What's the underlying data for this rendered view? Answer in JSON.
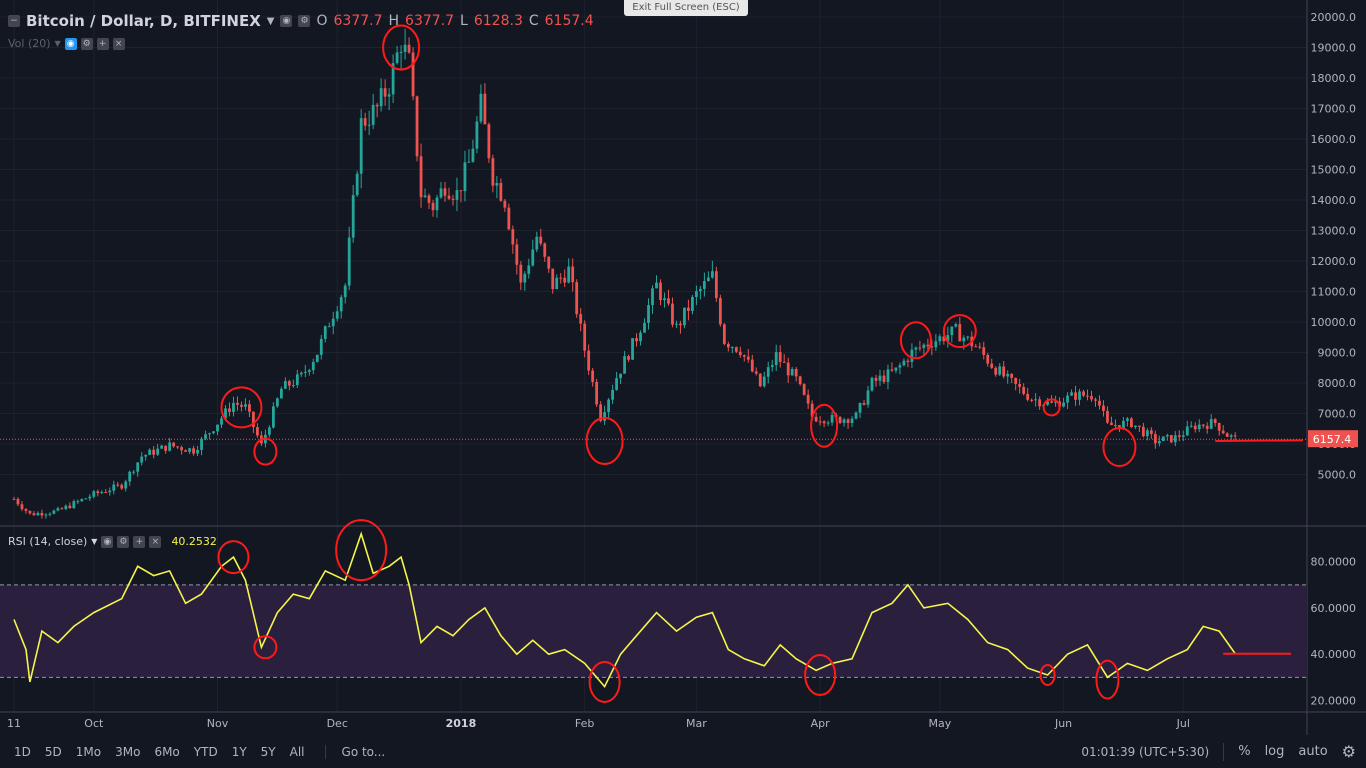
{
  "header": {
    "symbol": "Bitcoin / Dollar, D, BITFINEX",
    "ohlc": [
      {
        "label": "O",
        "value": "6377.7"
      },
      {
        "label": "H",
        "value": "6377.7"
      },
      {
        "label": "L",
        "value": "6128.3"
      },
      {
        "label": "C",
        "value": "6157.4"
      }
    ]
  },
  "volume_legend": "Vol (20)",
  "rsi_legend": {
    "label": "RSI (14, close)",
    "value": "40.2532"
  },
  "exit_fullscreen": "Exit Full Screen (ESC)",
  "last_price_badge": "6157.4",
  "colors": {
    "bg": "#131722",
    "up": "#26a69a",
    "down": "#ef5350",
    "rsi": "#f5f54a",
    "band": "#2a1f3d",
    "annotation": "#ff1a1a"
  },
  "toolbar": {
    "timeframes": [
      "1D",
      "5D",
      "1Mo",
      "3Mo",
      "6Mo",
      "YTD",
      "1Y",
      "5Y",
      "All"
    ],
    "goto": "Go to...",
    "clock": "01:01:39 (UTC+5:30)",
    "percent": "%",
    "log": "log",
    "auto": "auto",
    "settings_icon": "gear-icon"
  },
  "chart_data": [
    {
      "type": "candlestick",
      "title": "Bitcoin / Dollar, D, BITFINEX",
      "yticks": [
        "5000.0",
        "6000.0",
        "7000.0",
        "8000.0",
        "9000.0",
        "10000.0",
        "11000.0",
        "12000.0",
        "13000.0",
        "14000.0",
        "15000.0",
        "16000.0",
        "17000.0",
        "18000.0",
        "19000.0",
        "20000.0"
      ],
      "ylim": [
        4000,
        20000
      ],
      "xticks": [
        {
          "label": "11",
          "date": "2017-09-11"
        },
        {
          "label": "Oct",
          "date": "2017-10-01"
        },
        {
          "label": "Nov",
          "date": "2017-11-01"
        },
        {
          "label": "Dec",
          "date": "2017-12-01"
        },
        {
          "label": "2018",
          "date": "2018-01-01"
        },
        {
          "label": "Feb",
          "date": "2018-02-01"
        },
        {
          "label": "Mar",
          "date": "2018-03-01"
        },
        {
          "label": "Apr",
          "date": "2018-04-01"
        },
        {
          "label": "May",
          "date": "2018-05-01"
        },
        {
          "label": "Jun",
          "date": "2018-06-01"
        },
        {
          "label": "Jul",
          "date": "2018-07-01"
        }
      ],
      "x_range": [
        "2017-09-11",
        "2018-08-01"
      ],
      "close_path": [
        {
          "date": "2017-09-11",
          "close": 4200
        },
        {
          "date": "2017-09-15",
          "close": 3700
        },
        {
          "date": "2017-09-22",
          "close": 3800
        },
        {
          "date": "2017-10-01",
          "close": 4350
        },
        {
          "date": "2017-10-08",
          "close": 4650
        },
        {
          "date": "2017-10-13",
          "close": 5600
        },
        {
          "date": "2017-10-20",
          "close": 5950
        },
        {
          "date": "2017-10-26",
          "close": 5800
        },
        {
          "date": "2017-11-01",
          "close": 6700
        },
        {
          "date": "2017-11-05",
          "close": 7350
        },
        {
          "date": "2017-11-08",
          "close": 7200
        },
        {
          "date": "2017-11-12",
          "close": 5950
        },
        {
          "date": "2017-11-17",
          "close": 7800
        },
        {
          "date": "2017-11-22",
          "close": 8200
        },
        {
          "date": "2017-11-26",
          "close": 9000
        },
        {
          "date": "2017-11-29",
          "close": 10000
        },
        {
          "date": "2017-12-03",
          "close": 11200
        },
        {
          "date": "2017-12-07",
          "close": 16500
        },
        {
          "date": "2017-12-11",
          "close": 17000
        },
        {
          "date": "2017-12-14",
          "close": 17800
        },
        {
          "date": "2017-12-17",
          "close": 19200
        },
        {
          "date": "2017-12-19",
          "close": 18500
        },
        {
          "date": "2017-12-22",
          "close": 14200
        },
        {
          "date": "2017-12-25",
          "close": 13800
        },
        {
          "date": "2017-12-28",
          "close": 14500
        },
        {
          "date": "2017-12-31",
          "close": 14200
        },
        {
          "date": "2018-01-03",
          "close": 15200
        },
        {
          "date": "2018-01-06",
          "close": 17100
        },
        {
          "date": "2018-01-09",
          "close": 14800
        },
        {
          "date": "2018-01-12",
          "close": 14000
        },
        {
          "date": "2018-01-16",
          "close": 11200
        },
        {
          "date": "2018-01-20",
          "close": 12800
        },
        {
          "date": "2018-01-24",
          "close": 11200
        },
        {
          "date": "2018-01-28",
          "close": 11700
        },
        {
          "date": "2018-02-01",
          "close": 9100
        },
        {
          "date": "2018-02-05",
          "close": 6900
        },
        {
          "date": "2018-02-09",
          "close": 8200
        },
        {
          "date": "2018-02-14",
          "close": 9500
        },
        {
          "date": "2018-02-19",
          "close": 11200
        },
        {
          "date": "2018-02-24",
          "close": 9800
        },
        {
          "date": "2018-03-01",
          "close": 10900
        },
        {
          "date": "2018-03-05",
          "close": 11500
        },
        {
          "date": "2018-03-08",
          "close": 9400
        },
        {
          "date": "2018-03-12",
          "close": 9100
        },
        {
          "date": "2018-03-17",
          "close": 7900
        },
        {
          "date": "2018-03-21",
          "close": 8900
        },
        {
          "date": "2018-03-26",
          "close": 8100
        },
        {
          "date": "2018-03-30",
          "close": 6900
        },
        {
          "date": "2018-04-05",
          "close": 6800
        },
        {
          "date": "2018-04-10",
          "close": 6900
        },
        {
          "date": "2018-04-14",
          "close": 8000
        },
        {
          "date": "2018-04-20",
          "close": 8400
        },
        {
          "date": "2018-04-24",
          "close": 9000
        },
        {
          "date": "2018-04-28",
          "close": 9300
        },
        {
          "date": "2018-05-05",
          "close": 9700
        },
        {
          "date": "2018-05-10",
          "close": 9200
        },
        {
          "date": "2018-05-14",
          "close": 8600
        },
        {
          "date": "2018-05-18",
          "close": 8100
        },
        {
          "date": "2018-05-24",
          "close": 7500
        },
        {
          "date": "2018-05-29",
          "close": 7300
        },
        {
          "date": "2018-06-04",
          "close": 7600
        },
        {
          "date": "2018-06-09",
          "close": 7600
        },
        {
          "date": "2018-06-12",
          "close": 6600
        },
        {
          "date": "2018-06-18",
          "close": 6700
        },
        {
          "date": "2018-06-24",
          "close": 6100
        },
        {
          "date": "2018-06-29",
          "close": 6200
        },
        {
          "date": "2018-07-04",
          "close": 6600
        },
        {
          "date": "2018-07-09",
          "close": 6700
        },
        {
          "date": "2018-07-12",
          "close": 6300
        },
        {
          "date": "2018-07-14",
          "close": 6157.4
        }
      ],
      "last_price": 6157.4
    },
    {
      "type": "line",
      "title": "RSI (14, close)",
      "yticks": [
        "20.0000",
        "40.0000",
        "60.0000",
        "80.0000"
      ],
      "ylim": [
        15,
        95
      ],
      "bands": [
        30,
        70
      ],
      "series": [
        {
          "values": [
            {
              "date": "2017-09-11",
              "rsi": 55
            },
            {
              "date": "2017-09-14",
              "rsi": 42
            },
            {
              "date": "2017-09-15",
              "rsi": 28
            },
            {
              "date": "2017-09-18",
              "rsi": 50
            },
            {
              "date": "2017-09-22",
              "rsi": 45
            },
            {
              "date": "2017-09-26",
              "rsi": 52
            },
            {
              "date": "2017-10-01",
              "rsi": 58
            },
            {
              "date": "2017-10-08",
              "rsi": 64
            },
            {
              "date": "2017-10-12",
              "rsi": 78
            },
            {
              "date": "2017-10-16",
              "rsi": 74
            },
            {
              "date": "2017-10-20",
              "rsi": 76
            },
            {
              "date": "2017-10-24",
              "rsi": 62
            },
            {
              "date": "2017-10-28",
              "rsi": 66
            },
            {
              "date": "2017-11-02",
              "rsi": 78
            },
            {
              "date": "2017-11-05",
              "rsi": 82
            },
            {
              "date": "2017-11-08",
              "rsi": 72
            },
            {
              "date": "2017-11-12",
              "rsi": 43
            },
            {
              "date": "2017-11-16",
              "rsi": 58
            },
            {
              "date": "2017-11-20",
              "rsi": 66
            },
            {
              "date": "2017-11-24",
              "rsi": 64
            },
            {
              "date": "2017-11-28",
              "rsi": 76
            },
            {
              "date": "2017-12-03",
              "rsi": 72
            },
            {
              "date": "2017-12-07",
              "rsi": 92
            },
            {
              "date": "2017-12-10",
              "rsi": 75
            },
            {
              "date": "2017-12-14",
              "rsi": 78
            },
            {
              "date": "2017-12-17",
              "rsi": 82
            },
            {
              "date": "2017-12-19",
              "rsi": 70
            },
            {
              "date": "2017-12-22",
              "rsi": 45
            },
            {
              "date": "2017-12-26",
              "rsi": 52
            },
            {
              "date": "2017-12-30",
              "rsi": 48
            },
            {
              "date": "2018-01-03",
              "rsi": 55
            },
            {
              "date": "2018-01-07",
              "rsi": 60
            },
            {
              "date": "2018-01-11",
              "rsi": 48
            },
            {
              "date": "2018-01-15",
              "rsi": 40
            },
            {
              "date": "2018-01-19",
              "rsi": 46
            },
            {
              "date": "2018-01-23",
              "rsi": 40
            },
            {
              "date": "2018-01-27",
              "rsi": 42
            },
            {
              "date": "2018-02-01",
              "rsi": 36
            },
            {
              "date": "2018-02-06",
              "rsi": 26
            },
            {
              "date": "2018-02-10",
              "rsi": 40
            },
            {
              "date": "2018-02-14",
              "rsi": 48
            },
            {
              "date": "2018-02-19",
              "rsi": 58
            },
            {
              "date": "2018-02-24",
              "rsi": 50
            },
            {
              "date": "2018-03-01",
              "rsi": 56
            },
            {
              "date": "2018-03-05",
              "rsi": 58
            },
            {
              "date": "2018-03-09",
              "rsi": 42
            },
            {
              "date": "2018-03-13",
              "rsi": 38
            },
            {
              "date": "2018-03-18",
              "rsi": 35
            },
            {
              "date": "2018-03-22",
              "rsi": 44
            },
            {
              "date": "2018-03-26",
              "rsi": 38
            },
            {
              "date": "2018-03-31",
              "rsi": 33
            },
            {
              "date": "2018-04-04",
              "rsi": 36
            },
            {
              "date": "2018-04-09",
              "rsi": 38
            },
            {
              "date": "2018-04-14",
              "rsi": 58
            },
            {
              "date": "2018-04-19",
              "rsi": 62
            },
            {
              "date": "2018-04-23",
              "rsi": 70
            },
            {
              "date": "2018-04-27",
              "rsi": 60
            },
            {
              "date": "2018-05-03",
              "rsi": 62
            },
            {
              "date": "2018-05-08",
              "rsi": 55
            },
            {
              "date": "2018-05-13",
              "rsi": 45
            },
            {
              "date": "2018-05-18",
              "rsi": 42
            },
            {
              "date": "2018-05-23",
              "rsi": 34
            },
            {
              "date": "2018-05-28",
              "rsi": 31
            },
            {
              "date": "2018-06-02",
              "rsi": 40
            },
            {
              "date": "2018-06-07",
              "rsi": 44
            },
            {
              "date": "2018-06-12",
              "rsi": 30
            },
            {
              "date": "2018-06-17",
              "rsi": 36
            },
            {
              "date": "2018-06-22",
              "rsi": 33
            },
            {
              "date": "2018-06-27",
              "rsi": 38
            },
            {
              "date": "2018-07-02",
              "rsi": 42
            },
            {
              "date": "2018-07-06",
              "rsi": 52
            },
            {
              "date": "2018-07-10",
              "rsi": 50
            },
            {
              "date": "2018-07-14",
              "rsi": 40.2532
            }
          ]
        }
      ]
    }
  ]
}
